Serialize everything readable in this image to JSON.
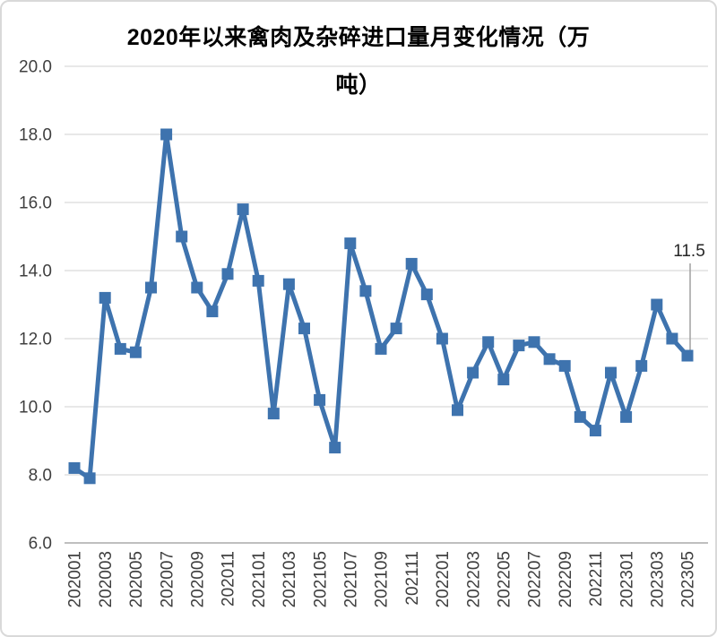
{
  "header": {
    "title_lines": [
      "2020年以来禽肉及杂碎进口量月变化情况（万",
      "吨）"
    ]
  },
  "colors": {
    "line": "#3E73AE",
    "marker": "#3E73AE",
    "grid": "#D9D9D9",
    "axis_line": "#BFBFBF",
    "tick_text": "#3F3F3F",
    "title_text": "#000000",
    "leader": "#A6A6A6",
    "background": "#FFFFFF",
    "border": "#D9D9D9"
  },
  "chart_data": {
    "type": "line",
    "title": "2020年以来禽肉及杂碎进口量月变化情况（万吨）",
    "x": [
      "202001",
      "202002",
      "202003",
      "202004",
      "202005",
      "202006",
      "202007",
      "202008",
      "202009",
      "202010",
      "202011",
      "202012",
      "202101",
      "202102",
      "202103",
      "202104",
      "202105",
      "202106",
      "202107",
      "202108",
      "202109",
      "202110",
      "202111",
      "202112",
      "202201",
      "202202",
      "202203",
      "202204",
      "202205",
      "202206",
      "202207",
      "202208",
      "202209",
      "202210",
      "202211",
      "202212",
      "202301",
      "202302",
      "202303",
      "202304",
      "202305"
    ],
    "values": [
      8.2,
      7.9,
      13.2,
      11.7,
      11.6,
      13.5,
      18.0,
      15.0,
      13.5,
      12.8,
      13.9,
      15.8,
      13.7,
      9.8,
      13.6,
      12.3,
      10.2,
      8.8,
      14.8,
      13.4,
      11.7,
      12.3,
      14.2,
      13.3,
      12.0,
      9.9,
      11.0,
      11.9,
      10.8,
      11.8,
      11.9,
      11.4,
      11.2,
      9.7,
      9.3,
      11.0,
      9.7,
      11.2,
      13.0,
      12.0,
      11.5
    ],
    "x_tick_labels": [
      "202001",
      "202003",
      "202005",
      "202007",
      "202009",
      "202011",
      "202101",
      "202103",
      "202105",
      "202107",
      "202109",
      "202111",
      "202201",
      "202203",
      "202205",
      "202207",
      "202209",
      "202211",
      "202301",
      "202303",
      "202305"
    ],
    "yticks": [
      "20.0",
      "18.0",
      "16.0",
      "14.0",
      "12.0",
      "10.0",
      "8.0",
      "6.0"
    ],
    "ylim": [
      6.0,
      20.0
    ],
    "xlabel": "",
    "ylabel": "",
    "grid": "horizontal",
    "legend": "none",
    "marker": "square",
    "annotation": {
      "x": "202305",
      "value": 11.5,
      "label": "11.5"
    }
  }
}
